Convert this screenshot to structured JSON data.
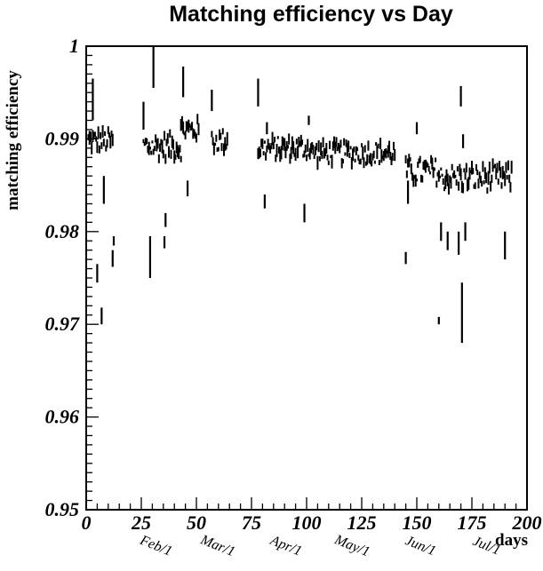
{
  "chart_data": {
    "type": "scatter",
    "title": "Matching efficiency vs Day",
    "xlabel": "days",
    "ylabel": "matching efficiency",
    "xlim": [
      0,
      200
    ],
    "ylim": [
      0.95,
      1.0
    ],
    "x_ticks": [
      0,
      25,
      50,
      75,
      100,
      125,
      150,
      175,
      200
    ],
    "x_tick_labels": [
      "0",
      "25",
      "50",
      "75",
      "100",
      "125",
      "150",
      "175",
      "200"
    ],
    "y_ticks": [
      0.95,
      0.96,
      0.97,
      0.98,
      0.99,
      1.0
    ],
    "y_tick_labels": [
      "0.95",
      "0.96",
      "0.97",
      "0.98",
      "0.99",
      "1"
    ],
    "month_markers": [
      {
        "label": "Feb/1",
        "day": 31
      },
      {
        "label": "Mar/1",
        "day": 59
      },
      {
        "label": "Apr/1",
        "day": 90
      },
      {
        "label": "May/1",
        "day": 120
      },
      {
        "label": "Jun/1",
        "day": 151
      },
      {
        "label": "Jul/1",
        "day": 181
      }
    ],
    "grid": false,
    "legend": "none",
    "marker_color": "#000000",
    "description_note": "",
    "bands": [
      {
        "x_start": 1,
        "x_end": 12,
        "y_center": 0.9898,
        "spread": 0.0012
      },
      {
        "x_start": 26,
        "x_end": 43,
        "y_center": 0.9892,
        "spread": 0.0014
      },
      {
        "x_start": 43,
        "x_end": 51,
        "y_center": 0.991,
        "spread": 0.0012
      },
      {
        "x_start": 57,
        "x_end": 64,
        "y_center": 0.9898,
        "spread": 0.0012
      },
      {
        "x_start": 78,
        "x_end": 102,
        "y_center": 0.989,
        "spread": 0.0012
      },
      {
        "x_start": 102,
        "x_end": 140,
        "y_center": 0.9885,
        "spread": 0.0012
      },
      {
        "x_start": 145,
        "x_end": 160,
        "y_center": 0.9865,
        "spread": 0.0014
      },
      {
        "x_start": 160,
        "x_end": 193,
        "y_center": 0.9858,
        "spread": 0.0014
      }
    ],
    "outliers": [
      {
        "x": 3,
        "y_low": 0.992,
        "y_high": 0.9965
      },
      {
        "x": 5,
        "y_low": 0.9745,
        "y_high": 0.9765
      },
      {
        "x": 7,
        "y_low": 0.97,
        "y_high": 0.9718
      },
      {
        "x": 8,
        "y_low": 0.983,
        "y_high": 0.986
      },
      {
        "x": 12,
        "y_low": 0.9762,
        "y_high": 0.978
      },
      {
        "x": 12.5,
        "y_low": 0.9785,
        "y_high": 0.9795
      },
      {
        "x": 26,
        "y_low": 0.991,
        "y_high": 0.994
      },
      {
        "x": 29,
        "y_low": 0.975,
        "y_high": 0.9795
      },
      {
        "x": 30.5,
        "y_low": 0.9955,
        "y_high": 1.0
      },
      {
        "x": 35.5,
        "y_low": 0.9782,
        "y_high": 0.9795
      },
      {
        "x": 36,
        "y_low": 0.9805,
        "y_high": 0.982
      },
      {
        "x": 44,
        "y_low": 0.9945,
        "y_high": 0.9978
      },
      {
        "x": 46,
        "y_low": 0.9838,
        "y_high": 0.9855
      },
      {
        "x": 57,
        "y_low": 0.993,
        "y_high": 0.9953
      },
      {
        "x": 78,
        "y_low": 0.9935,
        "y_high": 0.9965
      },
      {
        "x": 81,
        "y_low": 0.9825,
        "y_high": 0.984
      },
      {
        "x": 82,
        "y_low": 0.9905,
        "y_high": 0.9918
      },
      {
        "x": 99,
        "y_low": 0.981,
        "y_high": 0.983
      },
      {
        "x": 101,
        "y_low": 0.9915,
        "y_high": 0.9925
      },
      {
        "x": 145,
        "y_low": 0.9765,
        "y_high": 0.9778
      },
      {
        "x": 146,
        "y_low": 0.983,
        "y_high": 0.9855
      },
      {
        "x": 150,
        "y_low": 0.9905,
        "y_high": 0.9918
      },
      {
        "x": 160,
        "y_low": 0.97,
        "y_high": 0.9708
      },
      {
        "x": 161,
        "y_low": 0.979,
        "y_high": 0.981
      },
      {
        "x": 164,
        "y_low": 0.978,
        "y_high": 0.98
      },
      {
        "x": 169,
        "y_low": 0.9775,
        "y_high": 0.98
      },
      {
        "x": 170,
        "y_low": 0.9935,
        "y_high": 0.9957
      },
      {
        "x": 170.5,
        "y_low": 0.968,
        "y_high": 0.9745
      },
      {
        "x": 171,
        "y_low": 0.989,
        "y_high": 0.9905
      },
      {
        "x": 172,
        "y_low": 0.979,
        "y_high": 0.981
      },
      {
        "x": 190,
        "y_low": 0.977,
        "y_high": 0.98
      }
    ]
  }
}
